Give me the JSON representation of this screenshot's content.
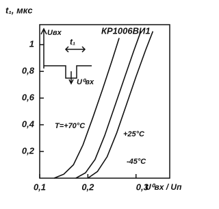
{
  "chart_data": {
    "type": "line",
    "title": "КР1006ВИ1",
    "y_label": "t₁, мкс",
    "x_label": "U⁰вх / Uп",
    "inset_labels": [
      "Uвх",
      "t₁",
      "U⁰вх"
    ],
    "xlim": [
      0.1,
      0.37
    ],
    "ylim": [
      0,
      1.15
    ],
    "xticks": [
      {
        "value": 0.1,
        "label": "0,1"
      },
      {
        "value": 0.2,
        "label": "0,2"
      },
      {
        "value": 0.3,
        "label": "0,3"
      }
    ],
    "yticks": [
      {
        "value": 0.2,
        "label": "0,2"
      },
      {
        "value": 0.4,
        "label": "0,4"
      },
      {
        "value": 0.6,
        "label": "0,6"
      },
      {
        "value": 0.8,
        "label": "0,8"
      },
      1
    ],
    "series": [
      {
        "name": "T=+70°C",
        "color": "#111111",
        "x": [
          0.13,
          0.15,
          0.17,
          0.19,
          0.21,
          0.23,
          0.25,
          0.265
        ],
        "values": [
          0.0,
          0.03,
          0.1,
          0.25,
          0.45,
          0.66,
          0.88,
          1.05
        ]
      },
      {
        "name": "+25°C",
        "color": "#111111",
        "x": [
          0.175,
          0.195,
          0.215,
          0.235,
          0.255,
          0.275,
          0.295,
          0.31
        ],
        "values": [
          0.0,
          0.04,
          0.14,
          0.32,
          0.53,
          0.74,
          0.95,
          1.1
        ]
      },
      {
        "name": "-45°C",
        "color": "#111111",
        "x": [
          0.2,
          0.22,
          0.24,
          0.26,
          0.28,
          0.3,
          0.32,
          0.335
        ],
        "values": [
          0.0,
          0.05,
          0.16,
          0.34,
          0.55,
          0.76,
          0.96,
          1.1
        ]
      }
    ]
  }
}
